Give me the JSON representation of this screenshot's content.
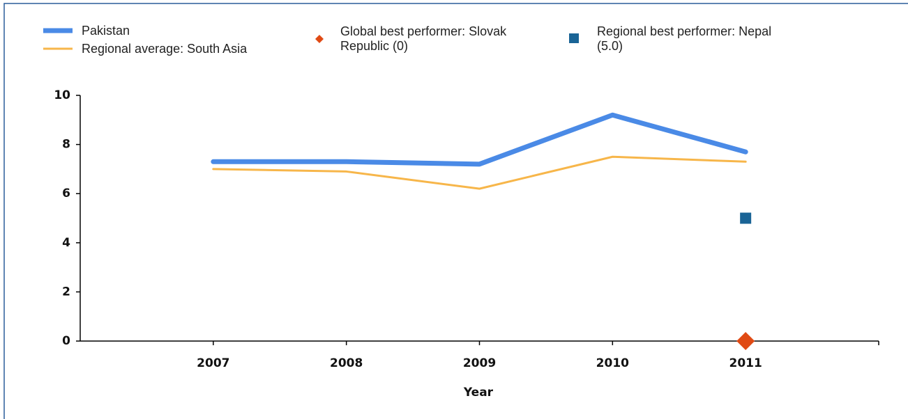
{
  "chart_data": {
    "type": "line",
    "x": [
      2007,
      2008,
      2009,
      2010,
      2011
    ],
    "xlim": [
      2006,
      2012
    ],
    "xticks": [
      2007,
      2008,
      2009,
      2010,
      2011
    ],
    "ylim": [
      0,
      10
    ],
    "yticks": [
      0,
      2,
      4,
      6,
      8,
      10
    ],
    "xlabel": "Year",
    "series": [
      {
        "name": "Pakistan",
        "color": "#4a8ae6",
        "marker": "line",
        "values": [
          7.3,
          7.3,
          7.2,
          9.2,
          7.7
        ]
      },
      {
        "name": "Regional average: South Asia",
        "color": "#f7b64a",
        "marker": "line",
        "values": [
          7.0,
          6.9,
          6.2,
          7.5,
          7.3
        ]
      },
      {
        "name": "Global best performer: Slovak Republic (0)",
        "color": "#e04a14",
        "marker": "diamond",
        "x": [
          2011
        ],
        "values": [
          0
        ]
      },
      {
        "name": "Regional best performer: Nepal (5.0)",
        "color": "#1a6496",
        "marker": "square",
        "x": [
          2011
        ],
        "values": [
          5.0
        ]
      }
    ]
  }
}
